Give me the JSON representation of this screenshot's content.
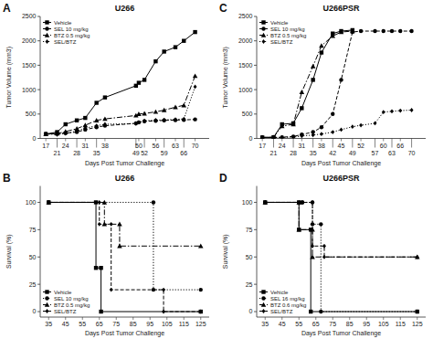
{
  "chart_data": [
    {
      "type": "line",
      "title": "U266",
      "xlabel": "Days Post Tumor Challenge",
      "ylabel": "Tumor Volume (mm3)",
      "annotations": [
        "A"
      ],
      "grid": false,
      "legend": "upper left",
      "xlim": [
        15,
        75
      ],
      "xticks": [
        17,
        21,
        24,
        28,
        31,
        35,
        38,
        49,
        50,
        52,
        56,
        59,
        63,
        66,
        70
      ],
      "ylim": [
        0,
        2500
      ],
      "yticks": [
        0,
        500,
        1000,
        1500,
        2000,
        2500
      ],
      "x": [
        17,
        21,
        24,
        28,
        31,
        35,
        38,
        49,
        50,
        52,
        56,
        59,
        63,
        66,
        70
      ],
      "series": [
        {
          "name": "Vehicle",
          "color": "#000000",
          "marker": "square",
          "line_style": "solid",
          "values": [
            90,
            130,
            290,
            370,
            420,
            730,
            840,
            1080,
            1140,
            1200,
            1580,
            1780,
            1870,
            2000,
            2180
          ]
        },
        {
          "name": "SEL 10 mg/kg",
          "color": "#000000",
          "marker": "circle",
          "line_style": "dashed",
          "values": [
            90,
            100,
            110,
            130,
            180,
            230,
            260,
            310,
            330,
            350,
            360,
            370,
            375,
            380,
            390
          ]
        },
        {
          "name": "BTZ 0.5 mg/kg",
          "color": "#000000",
          "marker": "triangle",
          "line_style": "dashdot",
          "values": [
            90,
            100,
            140,
            200,
            270,
            370,
            400,
            470,
            500,
            510,
            545,
            580,
            640,
            680,
            1280
          ]
        },
        {
          "name": "SEL/BTZ",
          "color": "#000000",
          "marker": "diamond",
          "line_style": "dotted",
          "values": [
            90,
            80,
            100,
            150,
            210,
            260,
            290,
            305,
            330,
            360,
            375,
            380,
            390,
            400,
            1060
          ]
        }
      ]
    },
    {
      "type": "line",
      "title": "U266PSR",
      "xlabel": "Days Post Tumor Challenge",
      "ylabel": "Tumor Volume (mm3)",
      "annotations": [
        "C"
      ],
      "grid": false,
      "legend": "upper left",
      "xlim": [
        15,
        75
      ],
      "xticks": [
        17,
        21,
        24,
        28,
        31,
        35,
        38,
        42,
        45,
        49,
        52,
        57,
        60,
        63,
        66,
        70
      ],
      "ylim": [
        0,
        2500
      ],
      "yticks": [
        0,
        500,
        1000,
        1500,
        2000,
        2500
      ],
      "series": [
        {
          "name": "Vehicle",
          "color": "#000000",
          "marker": "square",
          "line_style": "solid",
          "x": [
            17,
            21,
            24,
            28,
            31,
            35,
            38,
            42,
            45,
            49
          ],
          "values": [
            20,
            25,
            290,
            310,
            620,
            1200,
            1760,
            2150,
            2200,
            2220
          ]
        },
        {
          "name": "SEL 10 mg/kg",
          "color": "#000000",
          "marker": "circle",
          "line_style": "dashed",
          "x": [
            17,
            21,
            24,
            28,
            31,
            35,
            38,
            42,
            45,
            49,
            52,
            57,
            60,
            63,
            66,
            70
          ],
          "values": [
            20,
            20,
            25,
            40,
            80,
            130,
            230,
            500,
            1200,
            2180,
            2200,
            2200,
            2200,
            2200,
            2200,
            2200
          ]
        },
        {
          "name": "BTZ 0.5 mg/kg",
          "color": "#000000",
          "marker": "triangle",
          "line_style": "dashdot",
          "x": [
            17,
            21,
            24,
            28,
            31,
            35,
            38,
            42,
            45,
            49
          ],
          "values": [
            20,
            25,
            250,
            290,
            950,
            1480,
            1900,
            2100,
            2180,
            2200
          ]
        },
        {
          "name": "SEL/BTZ",
          "color": "#000000",
          "marker": "diamond",
          "line_style": "dotted",
          "x": [
            17,
            21,
            24,
            28,
            31,
            35,
            38,
            42,
            45,
            49,
            52,
            57,
            60,
            63,
            66,
            70
          ],
          "values": [
            20,
            20,
            20,
            25,
            50,
            70,
            90,
            130,
            180,
            240,
            270,
            310,
            540,
            555,
            570,
            580
          ]
        }
      ]
    },
    {
      "type": "step",
      "title": "U266",
      "xlabel": "Days Post Tumor Challenge",
      "ylabel": "Survival (%)",
      "annotations": [
        "B"
      ],
      "grid": false,
      "legend": "lower left",
      "xlim": [
        30,
        130
      ],
      "xticks": [
        35,
        45,
        55,
        65,
        75,
        85,
        95,
        105,
        115,
        125
      ],
      "ylim": [
        -5,
        115
      ],
      "yticks": [
        0,
        25,
        50,
        75,
        100
      ],
      "series": [
        {
          "name": "Vehicle",
          "color": "#000000",
          "marker": "square",
          "line_style": "solid",
          "x": [
            35,
            63,
            63,
            66,
            66,
            125
          ],
          "values": [
            100,
            100,
            40,
            40,
            0,
            0
          ]
        },
        {
          "name": "SEL 10 mg/kg",
          "color": "#000000",
          "marker": "circle",
          "line_style": "dotted",
          "x": [
            35,
            97,
            97,
            125
          ],
          "values": [
            100,
            100,
            20,
            20
          ]
        },
        {
          "name": "BTZ 0.5 mg/kg",
          "color": "#000000",
          "marker": "triangle",
          "line_style": "dashdot",
          "x": [
            35,
            68,
            68,
            77,
            77,
            125
          ],
          "values": [
            100,
            100,
            80,
            80,
            60,
            60
          ]
        },
        {
          "name": "SEL/BTZ",
          "color": "#000000",
          "marker": "diamond",
          "line_style": "dashed",
          "x": [
            35,
            65,
            65,
            72,
            72,
            103,
            103,
            125
          ],
          "values": [
            100,
            100,
            80,
            80,
            20,
            20,
            0,
            0
          ]
        }
      ]
    },
    {
      "type": "step",
      "title": "U266PSR",
      "xlabel": "Days Post Tumor Challenge",
      "ylabel": "Survival (%)",
      "annotations": [
        "D"
      ],
      "grid": false,
      "legend": "lower left",
      "xlim": [
        30,
        130
      ],
      "xticks": [
        35,
        45,
        55,
        65,
        75,
        85,
        95,
        105,
        115,
        125
      ],
      "ylim": [
        -5,
        115
      ],
      "yticks": [
        0,
        25,
        50,
        75,
        100
      ],
      "series": [
        {
          "name": "Vehicle",
          "color": "#000000",
          "marker": "square",
          "line_style": "solid",
          "x": [
            35,
            55,
            55,
            62,
            62,
            125
          ],
          "values": [
            100,
            100,
            75,
            75,
            0,
            0
          ]
        },
        {
          "name": "SEL 16 mg/kg",
          "color": "#000000",
          "marker": "circle",
          "line_style": "dotted",
          "x": [
            35,
            57,
            57,
            63,
            63,
            68,
            68,
            125
          ],
          "values": [
            100,
            100,
            100,
            100,
            80,
            80,
            0,
            0
          ]
        },
        {
          "name": "BTZ 0.6 mg/kg",
          "color": "#000000",
          "marker": "triangle",
          "line_style": "dashdot",
          "x": [
            35,
            55,
            55,
            63,
            63,
            125
          ],
          "values": [
            100,
            100,
            75,
            75,
            50,
            50
          ]
        },
        {
          "name": "SEL/BTZ",
          "color": "#000000",
          "marker": "diamond",
          "line_style": "dashed",
          "x": [
            35,
            63,
            63,
            70,
            70,
            125
          ],
          "values": [
            100,
            100,
            60,
            60,
            50,
            50
          ]
        }
      ]
    }
  ]
}
